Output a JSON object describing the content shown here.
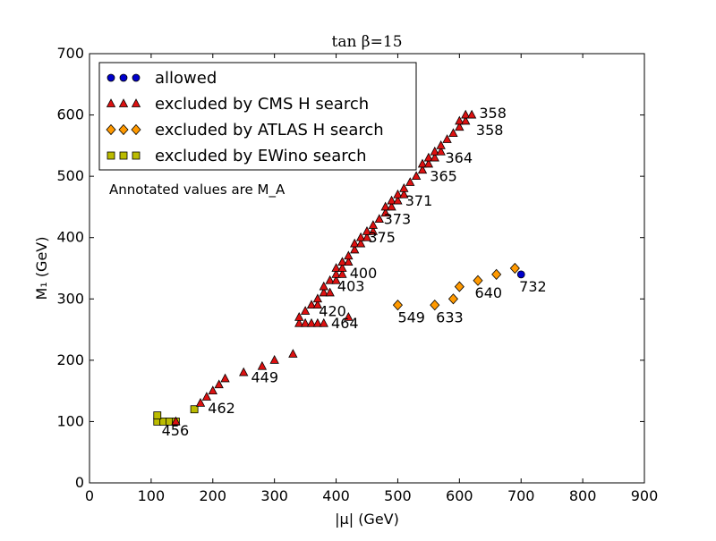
{
  "chart_data": {
    "type": "scatter",
    "title": "tan β=15",
    "xlabel": "|μ| (GeV)",
    "ylabel": "M₁ (GeV)",
    "xlim": [
      0,
      900
    ],
    "ylim": [
      0,
      700
    ],
    "xticks": [
      0,
      100,
      200,
      300,
      400,
      500,
      600,
      700,
      800,
      900
    ],
    "yticks": [
      0,
      100,
      200,
      300,
      400,
      500,
      600,
      700
    ],
    "grid": false,
    "legend_position": "top-left",
    "note": "Annotated values are M_A",
    "series": [
      {
        "name": "allowed",
        "marker": "circle",
        "color": "#0000cc",
        "points": [
          [
            700,
            340
          ]
        ]
      },
      {
        "name": "excluded by CMS H search",
        "marker": "triangle",
        "color": "#dd1111",
        "points": [
          [
            140,
            100
          ],
          [
            180,
            130
          ],
          [
            190,
            140
          ],
          [
            200,
            150
          ],
          [
            210,
            160
          ],
          [
            220,
            170
          ],
          [
            250,
            180
          ],
          [
            280,
            190
          ],
          [
            300,
            200
          ],
          [
            330,
            210
          ],
          [
            420,
            270
          ],
          [
            340,
            260
          ],
          [
            350,
            260
          ],
          [
            360,
            260
          ],
          [
            370,
            260
          ],
          [
            380,
            260
          ],
          [
            340,
            270
          ],
          [
            350,
            280
          ],
          [
            360,
            290
          ],
          [
            370,
            290
          ],
          [
            370,
            300
          ],
          [
            380,
            310
          ],
          [
            390,
            310
          ],
          [
            380,
            320
          ],
          [
            390,
            330
          ],
          [
            400,
            330
          ],
          [
            400,
            340
          ],
          [
            410,
            340
          ],
          [
            400,
            350
          ],
          [
            410,
            350
          ],
          [
            410,
            360
          ],
          [
            420,
            360
          ],
          [
            420,
            370
          ],
          [
            430,
            380
          ],
          [
            430,
            390
          ],
          [
            440,
            390
          ],
          [
            440,
            400
          ],
          [
            450,
            400
          ],
          [
            450,
            410
          ],
          [
            460,
            410
          ],
          [
            460,
            420
          ],
          [
            470,
            430
          ],
          [
            480,
            440
          ],
          [
            480,
            450
          ],
          [
            490,
            450
          ],
          [
            490,
            460
          ],
          [
            500,
            460
          ],
          [
            500,
            470
          ],
          [
            510,
            470
          ],
          [
            510,
            480
          ],
          [
            520,
            490
          ],
          [
            530,
            500
          ],
          [
            540,
            510
          ],
          [
            540,
            520
          ],
          [
            550,
            520
          ],
          [
            550,
            530
          ],
          [
            560,
            530
          ],
          [
            560,
            540
          ],
          [
            570,
            540
          ],
          [
            570,
            550
          ],
          [
            580,
            560
          ],
          [
            590,
            570
          ],
          [
            600,
            580
          ],
          [
            600,
            590
          ],
          [
            610,
            590
          ],
          [
            610,
            600
          ],
          [
            620,
            600
          ]
        ]
      },
      {
        "name": "excluded by ATLAS H search",
        "marker": "diamond",
        "color": "#ff9900",
        "points": [
          [
            500,
            290
          ],
          [
            560,
            290
          ],
          [
            590,
            300
          ],
          [
            600,
            320
          ],
          [
            630,
            330
          ],
          [
            660,
            340
          ],
          [
            690,
            350
          ]
        ]
      },
      {
        "name": "excluded by EWino search",
        "marker": "square",
        "color": "#bbbb00",
        "points": [
          [
            110,
            100
          ],
          [
            120,
            100
          ],
          [
            130,
            100
          ],
          [
            140,
            100
          ],
          [
            110,
            110
          ],
          [
            170,
            120
          ]
        ]
      }
    ],
    "annotations": [
      {
        "text": "358",
        "x": 632,
        "y": 595
      },
      {
        "text": "358",
        "x": 627,
        "y": 567
      },
      {
        "text": "364",
        "x": 577,
        "y": 522
      },
      {
        "text": "365",
        "x": 552,
        "y": 492
      },
      {
        "text": "371",
        "x": 512,
        "y": 452
      },
      {
        "text": "373",
        "x": 477,
        "y": 422
      },
      {
        "text": "375",
        "x": 452,
        "y": 392
      },
      {
        "text": "400",
        "x": 422,
        "y": 334
      },
      {
        "text": "403",
        "x": 402,
        "y": 313
      },
      {
        "text": "420",
        "x": 372,
        "y": 272
      },
      {
        "text": "464",
        "x": 392,
        "y": 252
      },
      {
        "text": "449",
        "x": 262,
        "y": 164
      },
      {
        "text": "462",
        "x": 192,
        "y": 114
      },
      {
        "text": "456",
        "x": 117,
        "y": 77
      },
      {
        "text": "549",
        "x": 500,
        "y": 262
      },
      {
        "text": "633",
        "x": 562,
        "y": 262
      },
      {
        "text": "640",
        "x": 625,
        "y": 302
      },
      {
        "text": "732",
        "x": 697,
        "y": 312
      }
    ]
  }
}
